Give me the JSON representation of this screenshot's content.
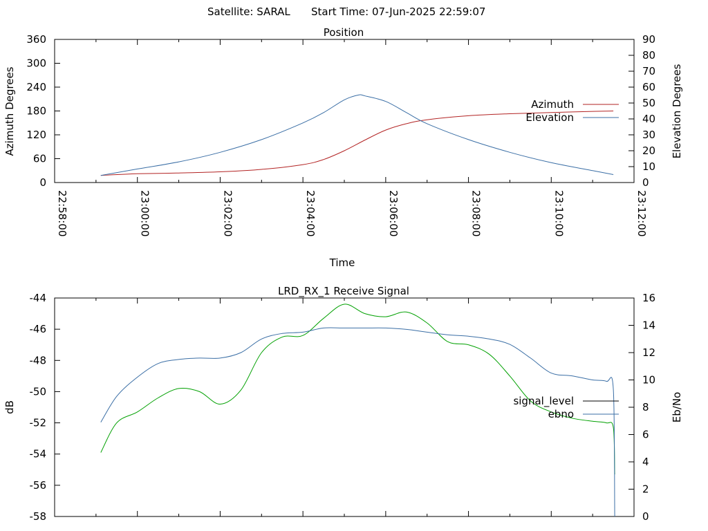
{
  "header": {
    "satellite_text": "Satellite: SARAL",
    "start_time_text": "Start Time: 07-Jun-2025 22:59:07"
  },
  "colors": {
    "azimuth": "#b22222",
    "elevation": "#3a6ea5",
    "signal_level": "#000000",
    "ebno": "#3a6ea5",
    "green_trace": "#00a000"
  },
  "chart_data": [
    {
      "type": "line",
      "title": "Position",
      "xlabel": "Time",
      "ylabel": "Azimuth Degrees",
      "y2label": "Elevation Degrees",
      "x_tick_labels": [
        "22:58:00",
        "23:00:00",
        "23:02:00",
        "23:04:00",
        "23:06:00",
        "23:08:00",
        "23:10:00",
        "23:12:00"
      ],
      "x_range_minutes": [
        0,
        14
      ],
      "ylim": [
        0,
        360
      ],
      "y_ticks": [
        0,
        60,
        120,
        180,
        240,
        300,
        360
      ],
      "y2lim": [
        0,
        90
      ],
      "y2_ticks": [
        0,
        10,
        20,
        30,
        40,
        50,
        60,
        70,
        80,
        90
      ],
      "legend_position": "right",
      "series": [
        {
          "name": "Azimuth",
          "axis": "y",
          "x": [
            "22:59:07",
            "23:00:00",
            "23:01:00",
            "23:02:00",
            "23:03:00",
            "23:04:00",
            "23:04:30",
            "23:05:00",
            "23:05:30",
            "23:06:00",
            "23:06:30",
            "23:07:00",
            "23:08:00",
            "23:09:00",
            "23:10:00",
            "23:11:00",
            "23:11:30"
          ],
          "values": [
            18,
            22,
            24,
            27,
            33,
            45,
            58,
            80,
            107,
            132,
            148,
            158,
            168,
            173,
            176,
            179,
            180
          ]
        },
        {
          "name": "Elevation",
          "axis": "y2",
          "x": [
            "22:59:07",
            "23:00:00",
            "23:01:00",
            "23:02:00",
            "23:03:00",
            "23:04:00",
            "23:04:30",
            "23:05:00",
            "23:05:20",
            "23:05:30",
            "23:06:00",
            "23:06:30",
            "23:07:00",
            "23:08:00",
            "23:09:00",
            "23:10:00",
            "23:11:00",
            "23:11:30"
          ],
          "values": [
            4.5,
            8.5,
            13,
            19,
            27,
            37.5,
            44,
            52,
            55,
            54.5,
            51,
            44,
            37,
            27,
            19,
            12.5,
            7.5,
            5
          ]
        }
      ]
    },
    {
      "type": "line",
      "title": "LRD_RX_1 Receive Signal",
      "ylabel": "dB",
      "y2label": "Eb/No",
      "ylim": [
        -58,
        -44
      ],
      "y_ticks": [
        -58,
        -56,
        -54,
        -52,
        -50,
        -48,
        -46,
        -44
      ],
      "y2lim": [
        0,
        16
      ],
      "y2_ticks": [
        0,
        2,
        4,
        6,
        8,
        10,
        12,
        14,
        16
      ],
      "x_range_minutes": [
        0,
        14
      ],
      "legend_position": "right",
      "series": [
        {
          "name": "signal_level",
          "axis": "y",
          "x": [
            "22:59:07",
            "22:59:30",
            "23:00:00",
            "23:00:30",
            "23:01:00",
            "23:01:30",
            "23:02:00",
            "23:02:30",
            "23:03:00",
            "23:03:30",
            "23:04:00",
            "23:04:30",
            "23:05:00",
            "23:05:30",
            "23:06:00",
            "23:06:30",
            "23:07:00",
            "23:07:30",
            "23:08:00",
            "23:08:30",
            "23:09:00",
            "23:09:30",
            "23:10:00",
            "23:10:30",
            "23:11:00",
            "23:11:20",
            "23:11:30",
            "23:11:32"
          ],
          "values": [
            -53.9,
            -52.0,
            -51.3,
            -50.4,
            -49.8,
            -50.0,
            -50.8,
            -49.9,
            -47.5,
            -46.5,
            -46.4,
            -45.3,
            -44.4,
            -45.0,
            -45.2,
            -44.9,
            -45.6,
            -46.8,
            -47.0,
            -47.6,
            -49.0,
            -50.6,
            -51.3,
            -51.7,
            -51.9,
            -52.0,
            -52.3,
            -55.3
          ]
        },
        {
          "name": "ebno",
          "axis": "y2",
          "x": [
            "22:59:07",
            "22:59:30",
            "23:00:00",
            "23:00:30",
            "23:01:00",
            "23:01:30",
            "23:02:00",
            "23:02:30",
            "23:03:00",
            "23:03:30",
            "23:04:00",
            "23:04:30",
            "23:05:00",
            "23:05:30",
            "23:06:00",
            "23:06:30",
            "23:07:00",
            "23:07:30",
            "23:08:00",
            "23:08:30",
            "23:09:00",
            "23:09:30",
            "23:10:00",
            "23:10:30",
            "23:11:00",
            "23:11:20",
            "23:11:30",
            "23:11:32"
          ],
          "values": [
            6.9,
            8.8,
            10.2,
            11.2,
            11.5,
            11.6,
            11.6,
            12.0,
            13.0,
            13.4,
            13.5,
            13.8,
            13.8,
            13.8,
            13.8,
            13.7,
            13.5,
            13.3,
            13.2,
            13.0,
            12.6,
            11.6,
            10.5,
            10.3,
            10.0,
            9.9,
            9.3,
            0
          ]
        }
      ]
    }
  ]
}
